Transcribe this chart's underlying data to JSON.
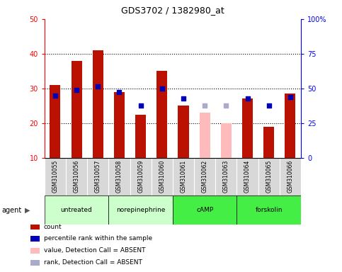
{
  "title": "GDS3702 / 1382980_at",
  "samples": [
    "GSM310055",
    "GSM310056",
    "GSM310057",
    "GSM310058",
    "GSM310059",
    "GSM310060",
    "GSM310061",
    "GSM310062",
    "GSM310063",
    "GSM310064",
    "GSM310065",
    "GSM310066"
  ],
  "count_values": [
    31,
    38,
    41,
    29,
    22.5,
    35,
    25,
    null,
    null,
    27,
    19,
    28.5
  ],
  "count_absent_values": [
    null,
    null,
    null,
    null,
    null,
    null,
    null,
    23,
    20,
    null,
    null,
    null
  ],
  "percentile_values": [
    28,
    29.5,
    30.5,
    29,
    25,
    30,
    27,
    null,
    null,
    27,
    25,
    27.5
  ],
  "percentile_absent_values": [
    null,
    null,
    null,
    null,
    null,
    null,
    null,
    25,
    25,
    null,
    null,
    null
  ],
  "group_boundaries": [
    {
      "label": "untreated",
      "start": 0,
      "end": 3,
      "color": "#ccffcc"
    },
    {
      "label": "norepinephrine",
      "start": 3,
      "end": 6,
      "color": "#ccffcc"
    },
    {
      "label": "cAMP",
      "start": 6,
      "end": 9,
      "color": "#44ee44"
    },
    {
      "label": "forskolin",
      "start": 9,
      "end": 12,
      "color": "#44ee44"
    }
  ],
  "ylim_left": [
    10,
    50
  ],
  "ylim_right": [
    0,
    100
  ],
  "yticks_left": [
    10,
    20,
    30,
    40,
    50
  ],
  "yticks_right": [
    0,
    25,
    50,
    75,
    100
  ],
  "ytick_labels_right": [
    "0",
    "25",
    "50",
    "75",
    "100%"
  ],
  "bar_color_present": "#bb1100",
  "bar_color_absent": "#ffbbbb",
  "dot_color_present": "#0000bb",
  "dot_color_absent": "#aaaacc",
  "bar_width": 0.5,
  "dot_size": 18,
  "agent_label": "agent",
  "legend_items": [
    {
      "label": "count",
      "color": "#bb1100"
    },
    {
      "label": "percentile rank within the sample",
      "color": "#0000bb"
    },
    {
      "label": "value, Detection Call = ABSENT",
      "color": "#ffbbbb"
    },
    {
      "label": "rank, Detection Call = ABSENT",
      "color": "#aaaacc"
    }
  ]
}
